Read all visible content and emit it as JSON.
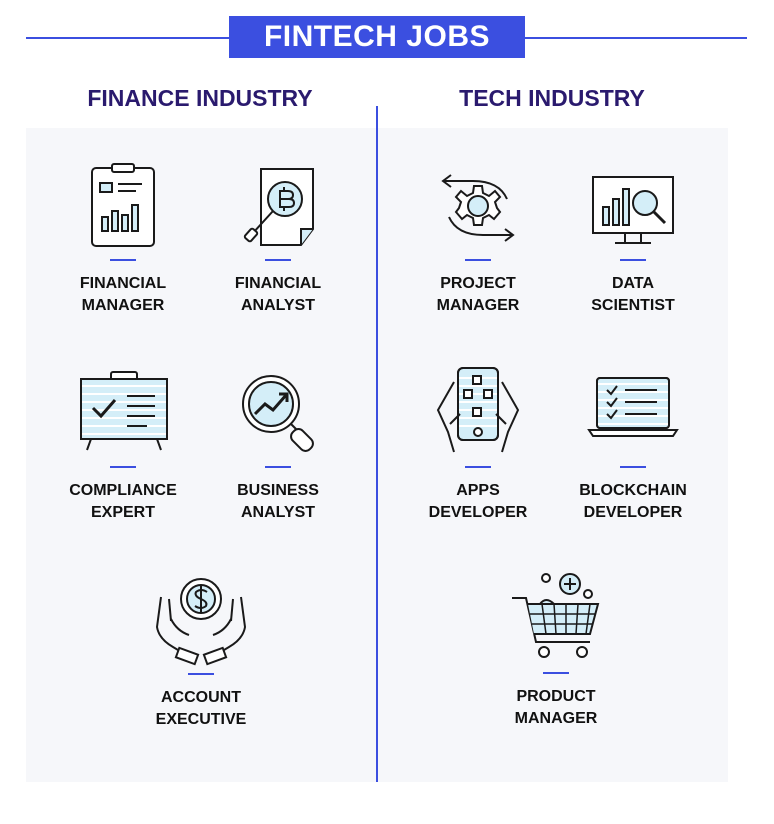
{
  "header": {
    "title": "FINTECH JOBS"
  },
  "colors": {
    "accent": "#3b4fe0",
    "section_title": "#2a1a6e",
    "icon_fill": "#d4eef8",
    "panel": "#f6f7fa"
  },
  "finance": {
    "title": "FINANCE INDUSTRY",
    "jobs": [
      {
        "line1": "FINANCIAL",
        "line2": "MANAGER",
        "icon": "clipboard-chart-icon"
      },
      {
        "line1": "FINANCIAL",
        "line2": "ANALYST",
        "icon": "magnifier-bitcoin-icon"
      },
      {
        "line1": "COMPLIANCE",
        "line2": "EXPERT",
        "icon": "checklist-board-icon"
      },
      {
        "line1": "BUSINESS",
        "line2": "ANALYST",
        "icon": "magnifier-trend-icon"
      },
      {
        "line1": "ACCOUNT",
        "line2": "EXECUTIVE",
        "icon": "hands-coin-icon"
      }
    ]
  },
  "tech": {
    "title": "TECH INDUSTRY",
    "jobs": [
      {
        "line1": "PROJECT",
        "line2": "MANAGER",
        "icon": "gear-cycle-icon"
      },
      {
        "line1": "DATA",
        "line2": "SCIENTIST",
        "icon": "monitor-analytics-icon"
      },
      {
        "line1": "APPS",
        "line2": "DEVELOPER",
        "icon": "phone-hands-icon"
      },
      {
        "line1": "BLOCKCHAIN",
        "line2": "DEVELOPER",
        "icon": "laptop-checklist-icon"
      },
      {
        "line1": "PRODUCT",
        "line2": "MANAGER",
        "icon": "shopping-cart-icon"
      }
    ]
  }
}
